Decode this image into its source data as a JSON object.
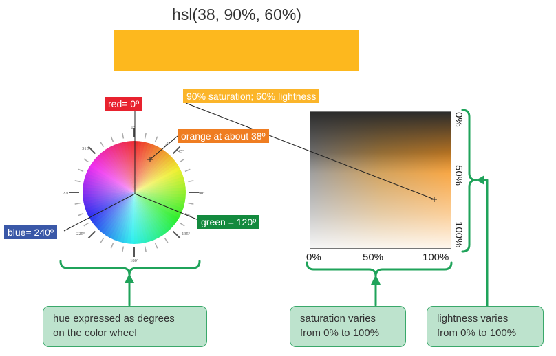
{
  "header": {
    "title": "hsl(38, 90%, 60%)",
    "swatch_color": "#fdb81e"
  },
  "wheel": {
    "red_label": "red= 0º",
    "orange_label": "orange at about 38º",
    "green_label": "green = 120º",
    "blue_label": "blue= 240º",
    "degree_marks": [
      "0º",
      "45º",
      "90º",
      "135º",
      "180º",
      "225º",
      "270º",
      "315º"
    ],
    "colors": {
      "red": "#e8222e",
      "orange": "#ef7d22",
      "green": "#138a3e",
      "blue": "#3a58a8"
    }
  },
  "square": {
    "top_label": "90% saturation; 60% lightness",
    "top_label_color": "#fbb52a",
    "x_ticks": [
      "0%",
      "50%",
      "100%"
    ],
    "y_ticks": [
      "0%",
      "50%",
      "100%"
    ]
  },
  "callouts": {
    "hue": [
      "hue expressed as degrees",
      "on the color wheel"
    ],
    "saturation": [
      "saturation varies",
      "from 0% to 100%"
    ],
    "lightness": [
      "lightness varies",
      "from 0% to 100%"
    ]
  },
  "accent_color": "#1fa35a"
}
